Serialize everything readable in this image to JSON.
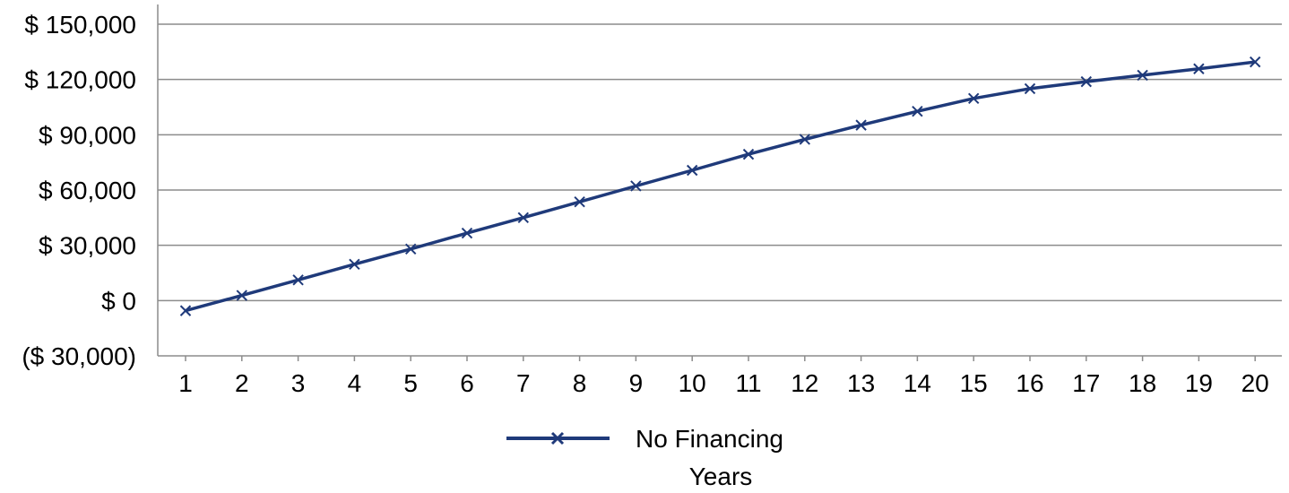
{
  "chart_data": {
    "type": "line",
    "x": [
      1,
      2,
      3,
      4,
      5,
      6,
      7,
      8,
      9,
      10,
      11,
      12,
      13,
      14,
      15,
      16,
      17,
      18,
      19,
      20
    ],
    "x_tick_labels": [
      "1",
      "2",
      "3",
      "4",
      "5",
      "6",
      "7",
      "8",
      "9",
      "10",
      "11",
      "12",
      "13",
      "14",
      "15",
      "16",
      "17",
      "18",
      "19",
      "20"
    ],
    "xlabel": "Years",
    "ylabel": "",
    "ylim": [
      -30000,
      150000
    ],
    "y_ticks": [
      -30000,
      0,
      30000,
      60000,
      90000,
      120000,
      150000
    ],
    "y_tick_labels": [
      "($ 30,000)",
      "$ 0",
      "$ 30,000",
      "$ 60,000",
      "$ 90,000",
      "$ 120,000",
      "$ 150,000"
    ],
    "grid": "horizontal",
    "legend_position": "bottom",
    "series": [
      {
        "name": "No Financing",
        "color": "#1f3a7a",
        "marker": "x",
        "values": [
          -5500,
          2800,
          11200,
          19700,
          28000,
          36600,
          45000,
          53600,
          62200,
          70700,
          79400,
          87500,
          95200,
          102700,
          109700,
          115000,
          118800,
          122300,
          125800,
          129500
        ]
      }
    ]
  }
}
